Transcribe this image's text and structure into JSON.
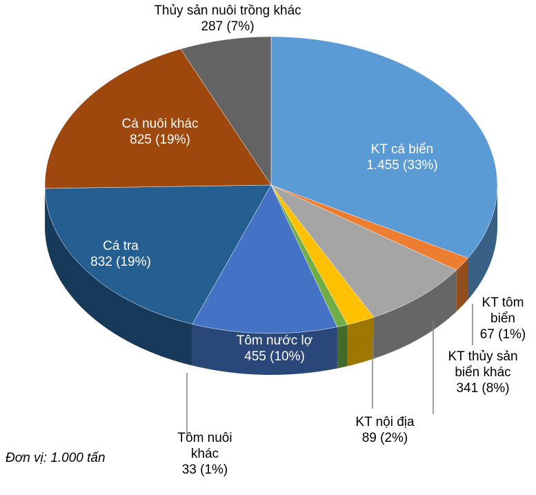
{
  "chart_data": {
    "type": "pie3d",
    "unit_note": "Đơn vị: 1.000 tấn",
    "categories": [
      "KT cá biển",
      "KT tôm biển",
      "KT thủy sản biển khác",
      "KT nội địa",
      "Tôm nuôi khác",
      "Tôm nước lợ",
      "Cá tra",
      "Cá nuôi khác",
      "Thủy sản nuôi trồng khác"
    ],
    "values": [
      1455,
      67,
      341,
      89,
      33,
      455,
      832,
      825,
      287
    ],
    "value_labels": [
      "1.455 (33%)",
      "67 (1%)",
      "341 (8%)",
      "89 (2%)",
      "33 (1%)",
      "455 (10%)",
      "832 (19%)",
      "825 (19%)",
      "287 (7%)"
    ],
    "colors": [
      "#5b9bd5",
      "#ed7d31",
      "#a5a5a5",
      "#ffc000",
      "#70ad47",
      "#4472c4",
      "#255e91",
      "#9e480e",
      "#636363"
    ]
  }
}
